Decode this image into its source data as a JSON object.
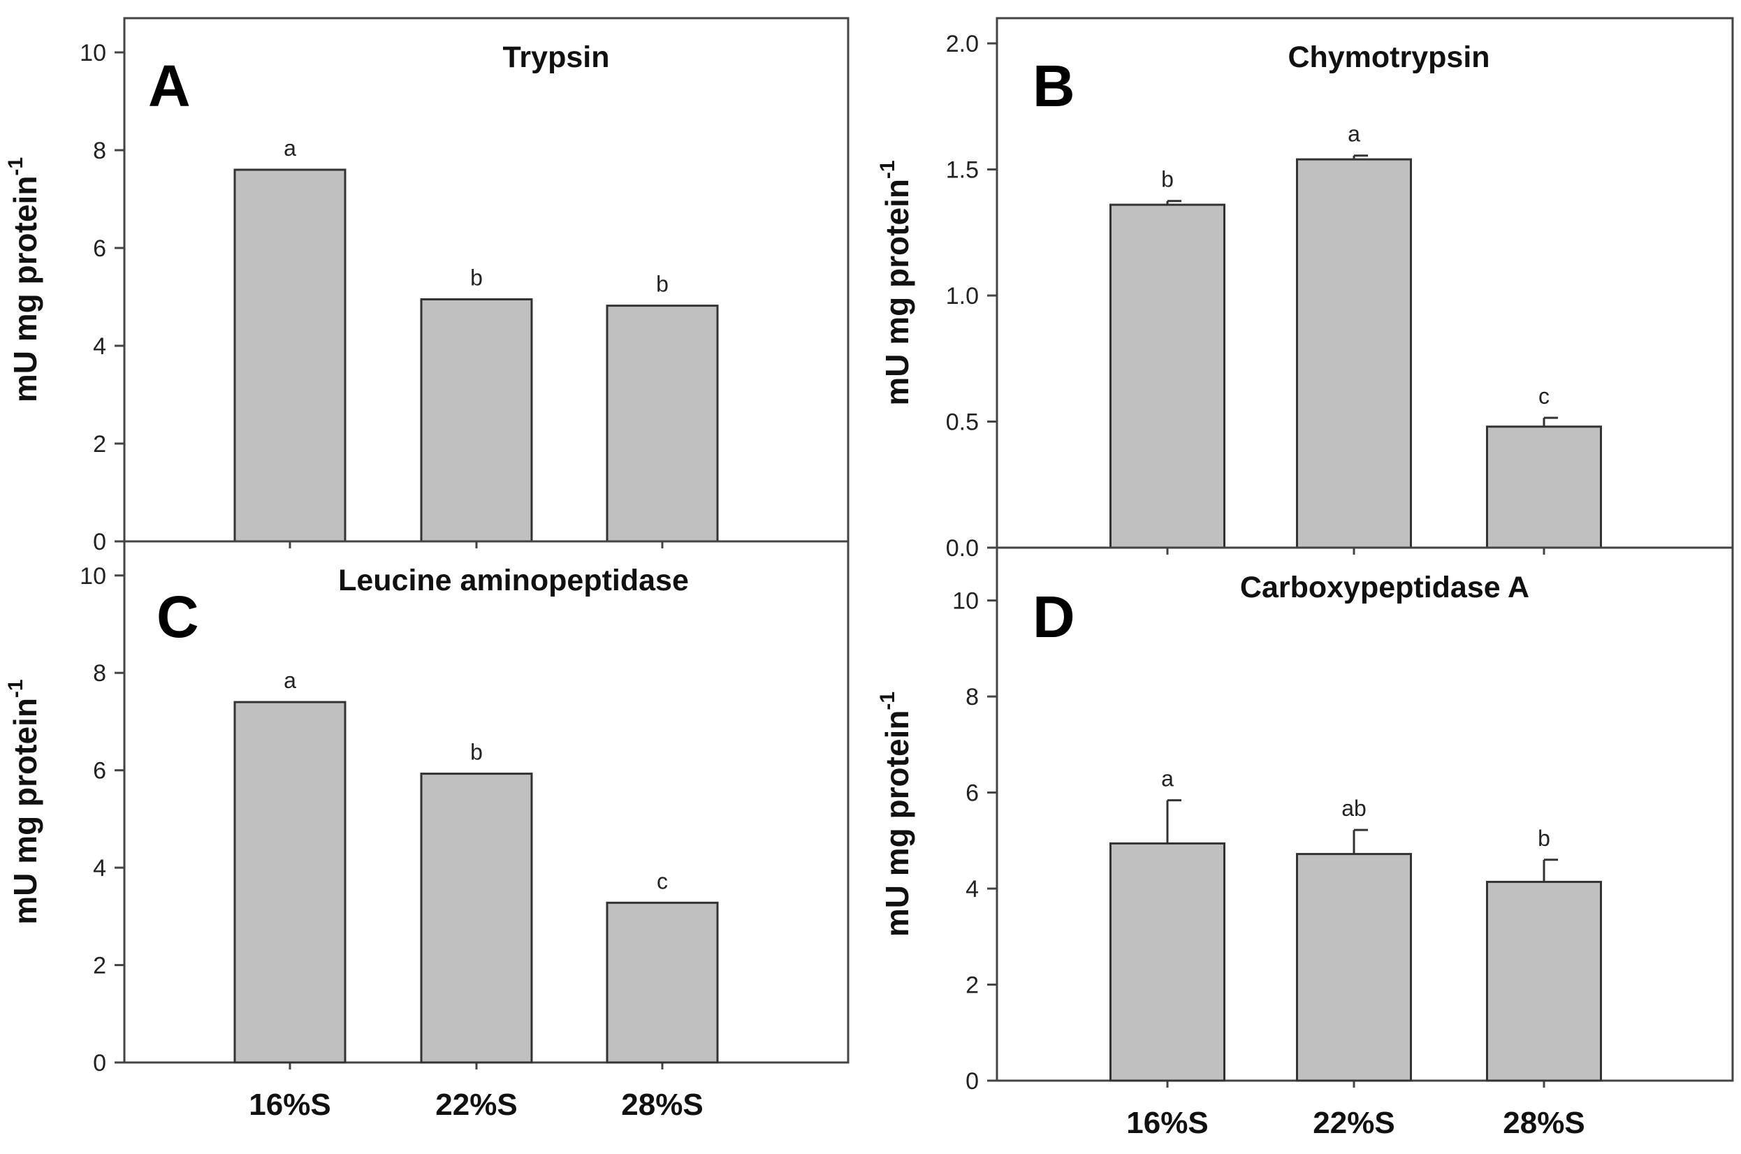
{
  "chart_data": [
    {
      "type": "bar",
      "panel": "A",
      "title": "Trypsin",
      "ylabel": "mU mg protein",
      "ylabel_sup": "-1",
      "categories": [
        "16%S",
        "22%S",
        "28%S"
      ],
      "show_categories": false,
      "values": [
        7.6,
        4.95,
        4.82
      ],
      "errors": [
        0,
        0,
        0
      ],
      "significance": [
        "a",
        "b",
        "b"
      ],
      "ylim": [
        0,
        10.7
      ],
      "yticks": [
        0,
        2,
        4,
        6,
        8,
        10
      ],
      "ytick_labels": [
        "0",
        "2",
        "4",
        "6",
        "8",
        "10"
      ]
    },
    {
      "type": "bar",
      "panel": "B",
      "title": "Chymotrypsin",
      "ylabel": "mU mg protein",
      "ylabel_sup": "-1",
      "categories": [
        "16%S",
        "22%S",
        "28%S"
      ],
      "show_categories": false,
      "values": [
        1.36,
        1.54,
        0.48
      ],
      "errors": [
        0.015,
        0.015,
        0.035
      ],
      "significance": [
        "b",
        "a",
        "c"
      ],
      "ylim": [
        0,
        2.1
      ],
      "yticks": [
        0,
        0.5,
        1.0,
        1.5,
        2.0
      ],
      "ytick_labels": [
        "0.0",
        "0.5",
        "1.0",
        "1.5",
        "2.0"
      ]
    },
    {
      "type": "bar",
      "panel": "C",
      "title": "Leucine aminopeptidase",
      "ylabel": "mU mg protein",
      "ylabel_sup": "-1",
      "categories": [
        "16%S",
        "22%S",
        "28%S"
      ],
      "show_categories": true,
      "values": [
        7.4,
        5.93,
        3.28
      ],
      "errors": [
        0,
        0,
        0
      ],
      "significance": [
        "a",
        "b",
        "c"
      ],
      "ylim": [
        0,
        10.7
      ],
      "yticks": [
        0,
        2,
        4,
        6,
        8,
        10
      ],
      "ytick_labels": [
        "0",
        "2",
        "4",
        "6",
        "8",
        "10"
      ]
    },
    {
      "type": "bar",
      "panel": "D",
      "title": "Carboxypeptidase A",
      "ylabel": "mU mg protein",
      "ylabel_sup": "-1",
      "categories": [
        "16%S",
        "22%S",
        "28%S"
      ],
      "show_categories": true,
      "values": [
        4.94,
        4.72,
        4.14
      ],
      "errors": [
        0.9,
        0.5,
        0.46
      ],
      "significance": [
        "a",
        "ab",
        "b"
      ],
      "ylim": [
        0,
        11.1
      ],
      "yticks": [
        0,
        2,
        4,
        6,
        8,
        10
      ],
      "ytick_labels": [
        "0",
        "2",
        "4",
        "6",
        "8",
        "10"
      ]
    }
  ]
}
